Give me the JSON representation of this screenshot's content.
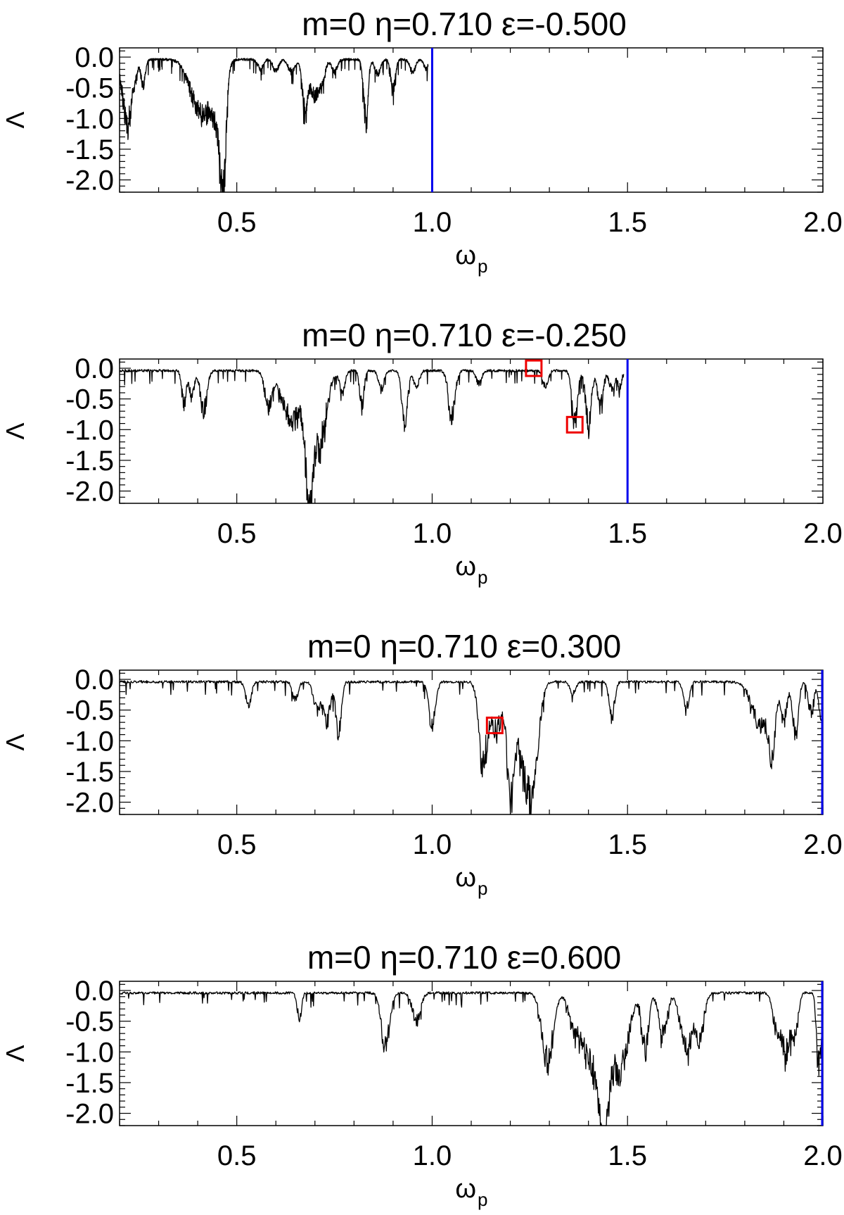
{
  "chart_data": [
    {
      "type": "line",
      "title": "m=0 η=0.710 ε=-0.500",
      "xlabel": "ω",
      "xlabel_sub": "p",
      "ylabel": "Λ",
      "xlim": [
        0.2,
        2.0
      ],
      "ylim": [
        -2.2,
        0.15
      ],
      "xticks": [
        0.5,
        1.0,
        1.5,
        2.0
      ],
      "xtick_labels": [
        "0.5",
        "1.0",
        "1.5",
        "2.0"
      ],
      "yticks": [
        0.0,
        -0.5,
        -1.0,
        -1.5,
        -2.0
      ],
      "ytick_labels": [
        "0.0",
        "-0.5",
        "-1.0",
        "-1.5",
        "-2.0"
      ],
      "vline": {
        "x": 1.0,
        "color": "#0000ee"
      },
      "markers": [],
      "series": [
        {
          "color": "#000000",
          "extent": [
            0.2,
            0.99
          ],
          "dips": [
            {
              "x": 0.215,
              "depth": 0.75,
              "width": 0.015
            },
            {
              "x": 0.225,
              "depth": 0.5,
              "width": 0.01
            },
            {
              "x": 0.24,
              "depth": 0.3,
              "width": 0.008
            },
            {
              "x": 0.26,
              "depth": 0.4,
              "width": 0.008
            },
            {
              "x": 0.395,
              "depth": 0.55,
              "width": 0.03
            },
            {
              "x": 0.425,
              "depth": 0.6,
              "width": 0.028
            },
            {
              "x": 0.465,
              "depth": 1.55,
              "width": 0.01
            },
            {
              "x": 0.455,
              "depth": 0.75,
              "width": 0.02
            },
            {
              "x": 0.56,
              "depth": 0.15,
              "width": 0.01
            },
            {
              "x": 0.6,
              "depth": 0.2,
              "width": 0.01
            },
            {
              "x": 0.64,
              "depth": 0.2,
              "width": 0.012
            },
            {
              "x": 0.675,
              "depth": 0.85,
              "width": 0.01
            },
            {
              "x": 0.7,
              "depth": 0.6,
              "width": 0.015
            },
            {
              "x": 0.72,
              "depth": 0.3,
              "width": 0.01
            },
            {
              "x": 0.75,
              "depth": 0.2,
              "width": 0.01
            },
            {
              "x": 0.83,
              "depth": 1.0,
              "width": 0.008
            },
            {
              "x": 0.86,
              "depth": 0.25,
              "width": 0.01
            },
            {
              "x": 0.9,
              "depth": 0.5,
              "width": 0.008
            },
            {
              "x": 0.95,
              "depth": 0.2,
              "width": 0.01
            },
            {
              "x": 0.985,
              "depth": 0.15,
              "width": 0.008
            }
          ]
        }
      ]
    },
    {
      "type": "line",
      "title": "m=0 η=0.710 ε=-0.250",
      "xlabel": "ω",
      "xlabel_sub": "p",
      "ylabel": "Λ",
      "xlim": [
        0.2,
        2.0
      ],
      "ylim": [
        -2.2,
        0.15
      ],
      "xticks": [
        0.5,
        1.0,
        1.5,
        2.0
      ],
      "xtick_labels": [
        "0.5",
        "1.0",
        "1.5",
        "2.0"
      ],
      "yticks": [
        0.0,
        -0.5,
        -1.0,
        -1.5,
        -2.0
      ],
      "ytick_labels": [
        "0.0",
        "-0.5",
        "-1.0",
        "-1.5",
        "-2.0"
      ],
      "vline": {
        "x": 1.5,
        "color": "#0000ee"
      },
      "markers": [
        {
          "x": 1.26,
          "y": 0.0,
          "color": "#ee0000"
        },
        {
          "x": 1.365,
          "y": -0.92,
          "color": "#ee0000"
        }
      ],
      "series": [
        {
          "color": "#000000",
          "extent": [
            0.2,
            1.49
          ],
          "dips": [
            {
              "x": 0.365,
              "depth": 0.55,
              "width": 0.008
            },
            {
              "x": 0.385,
              "depth": 0.45,
              "width": 0.008
            },
            {
              "x": 0.415,
              "depth": 0.65,
              "width": 0.012
            },
            {
              "x": 0.58,
              "depth": 0.55,
              "width": 0.012
            },
            {
              "x": 0.645,
              "depth": 0.8,
              "width": 0.04
            },
            {
              "x": 0.685,
              "depth": 1.6,
              "width": 0.012
            },
            {
              "x": 0.71,
              "depth": 1.2,
              "width": 0.025
            },
            {
              "x": 0.77,
              "depth": 0.35,
              "width": 0.01
            },
            {
              "x": 0.82,
              "depth": 0.55,
              "width": 0.008
            },
            {
              "x": 0.87,
              "depth": 0.3,
              "width": 0.01
            },
            {
              "x": 0.93,
              "depth": 0.9,
              "width": 0.01
            },
            {
              "x": 0.96,
              "depth": 0.25,
              "width": 0.01
            },
            {
              "x": 1.05,
              "depth": 0.75,
              "width": 0.012
            },
            {
              "x": 1.12,
              "depth": 0.2,
              "width": 0.01
            },
            {
              "x": 1.29,
              "depth": 0.25,
              "width": 0.01
            },
            {
              "x": 1.365,
              "depth": 0.85,
              "width": 0.01
            },
            {
              "x": 1.4,
              "depth": 0.9,
              "width": 0.01
            },
            {
              "x": 1.43,
              "depth": 0.6,
              "width": 0.01
            },
            {
              "x": 1.46,
              "depth": 0.3,
              "width": 0.01
            },
            {
              "x": 1.48,
              "depth": 0.25,
              "width": 0.008
            }
          ]
        }
      ]
    },
    {
      "type": "line",
      "title": "m=0 η=0.710 ε=0.300",
      "xlabel": "ω",
      "xlabel_sub": "p",
      "ylabel": "Λ",
      "xlim": [
        0.2,
        2.0
      ],
      "ylim": [
        -2.2,
        0.15
      ],
      "xticks": [
        0.5,
        1.0,
        1.5,
        2.0
      ],
      "xtick_labels": [
        "0.5",
        "1.0",
        "1.5",
        "2.0"
      ],
      "yticks": [
        0.0,
        -0.5,
        -1.0,
        -1.5,
        -2.0
      ],
      "ytick_labels": [
        "0.0",
        "-0.5",
        "-1.0",
        "-1.5",
        "-2.0"
      ],
      "vline": {
        "x": 2.0,
        "color": "#0000ee"
      },
      "markers": [
        {
          "x": 1.16,
          "y": -0.75,
          "color": "#ee0000"
        }
      ],
      "series": [
        {
          "color": "#000000",
          "extent": [
            0.2,
            2.0
          ],
          "dips": [
            {
              "x": 0.53,
              "depth": 0.4,
              "width": 0.01
            },
            {
              "x": 0.65,
              "depth": 0.3,
              "width": 0.01
            },
            {
              "x": 0.705,
              "depth": 0.45,
              "width": 0.012
            },
            {
              "x": 0.73,
              "depth": 0.7,
              "width": 0.012
            },
            {
              "x": 0.76,
              "depth": 0.8,
              "width": 0.01
            },
            {
              "x": 1.0,
              "depth": 0.7,
              "width": 0.012
            },
            {
              "x": 1.13,
              "depth": 1.3,
              "width": 0.015
            },
            {
              "x": 1.165,
              "depth": 0.8,
              "width": 0.02
            },
            {
              "x": 1.2,
              "depth": 1.65,
              "width": 0.012
            },
            {
              "x": 1.235,
              "depth": 1.4,
              "width": 0.025
            },
            {
              "x": 1.26,
              "depth": 1.2,
              "width": 0.02
            },
            {
              "x": 1.36,
              "depth": 0.2,
              "width": 0.01
            },
            {
              "x": 1.46,
              "depth": 0.55,
              "width": 0.01
            },
            {
              "x": 1.65,
              "depth": 0.45,
              "width": 0.01
            },
            {
              "x": 1.84,
              "depth": 0.7,
              "width": 0.03
            },
            {
              "x": 1.87,
              "depth": 0.95,
              "width": 0.012
            },
            {
              "x": 1.9,
              "depth": 0.6,
              "width": 0.012
            },
            {
              "x": 1.93,
              "depth": 0.9,
              "width": 0.01
            },
            {
              "x": 1.97,
              "depth": 0.5,
              "width": 0.01
            },
            {
              "x": 1.995,
              "depth": 0.6,
              "width": 0.008
            }
          ]
        }
      ]
    },
    {
      "type": "line",
      "title": "m=0 η=0.710 ε=0.600",
      "xlabel": "ω",
      "xlabel_sub": "p",
      "ylabel": "Λ",
      "xlim": [
        0.2,
        2.0
      ],
      "ylim": [
        -2.2,
        0.15
      ],
      "xticks": [
        0.5,
        1.0,
        1.5,
        2.0
      ],
      "xtick_labels": [
        "0.5",
        "1.0",
        "1.5",
        "2.0"
      ],
      "yticks": [
        0.0,
        -0.5,
        -1.0,
        -1.5,
        -2.0
      ],
      "ytick_labels": [
        "0.0",
        "-0.5",
        "-1.0",
        "-1.5",
        "-2.0"
      ],
      "vline": {
        "x": 2.0,
        "color": "#0000ee"
      },
      "markers": [],
      "series": [
        {
          "color": "#000000",
          "extent": [
            0.2,
            2.0
          ],
          "dips": [
            {
              "x": 0.66,
              "depth": 0.4,
              "width": 0.008
            },
            {
              "x": 0.88,
              "depth": 0.85,
              "width": 0.015
            },
            {
              "x": 0.96,
              "depth": 0.45,
              "width": 0.015
            },
            {
              "x": 1.295,
              "depth": 1.15,
              "width": 0.02
            },
            {
              "x": 1.36,
              "depth": 0.35,
              "width": 0.015
            },
            {
              "x": 1.41,
              "depth": 1.2,
              "width": 0.04
            },
            {
              "x": 1.44,
              "depth": 1.7,
              "width": 0.015
            },
            {
              "x": 1.48,
              "depth": 1.25,
              "width": 0.03
            },
            {
              "x": 1.545,
              "depth": 0.9,
              "width": 0.012
            },
            {
              "x": 1.59,
              "depth": 0.7,
              "width": 0.015
            },
            {
              "x": 1.65,
              "depth": 0.95,
              "width": 0.02
            },
            {
              "x": 1.685,
              "depth": 0.7,
              "width": 0.015
            },
            {
              "x": 1.88,
              "depth": 0.5,
              "width": 0.012
            },
            {
              "x": 1.905,
              "depth": 0.95,
              "width": 0.018
            },
            {
              "x": 1.93,
              "depth": 0.6,
              "width": 0.01
            },
            {
              "x": 1.99,
              "depth": 1.3,
              "width": 0.008
            }
          ]
        }
      ]
    }
  ]
}
